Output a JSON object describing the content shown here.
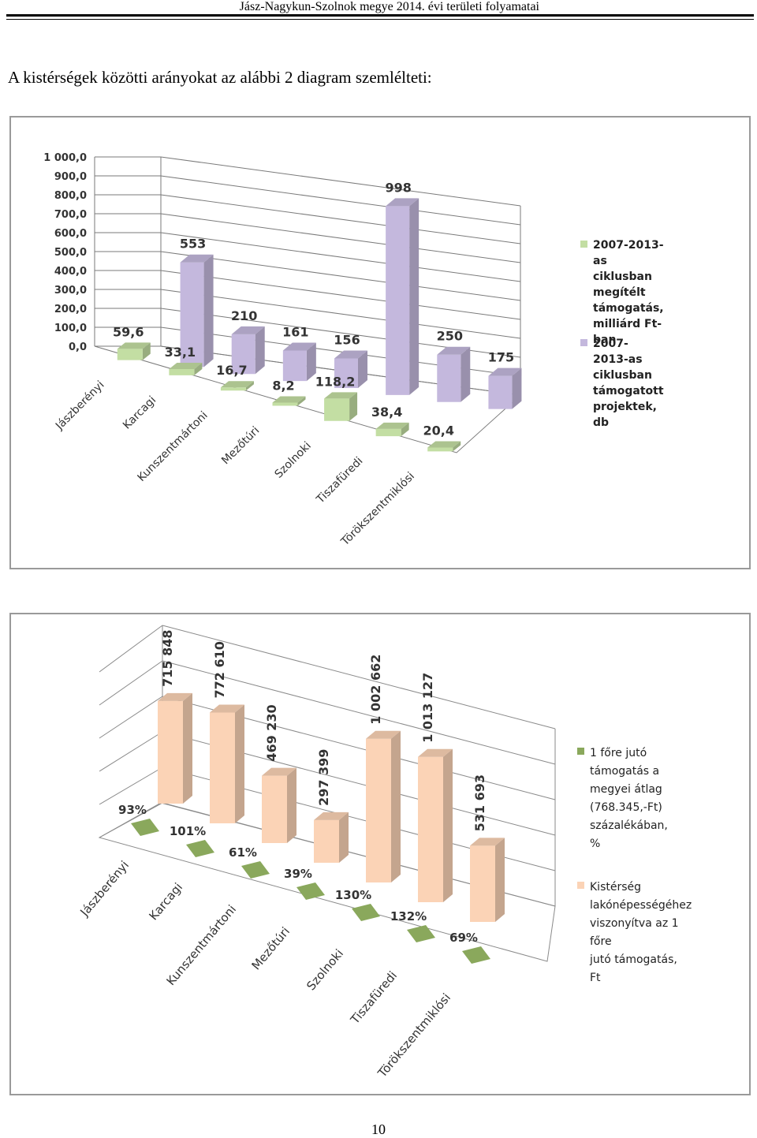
{
  "header": {
    "title": "Jász-Nagykun-Szolnok megye 2014. évi területi folyamatai"
  },
  "intro_text": "A kistérségek közötti arányokat az alábbi 2 diagram szemlélteti:",
  "page_number": "10",
  "chart_data": [
    {
      "type": "bar",
      "categories": [
        "Jászberényi",
        "Karcagi",
        "Kunszentmártoni",
        "Mezőtúri",
        "Szolnoki",
        "Tiszafüredi",
        "Törökszentmiklósi"
      ],
      "series": [
        {
          "name": "2007-2013-as ciklusban megítélt támogatás, milliárd Ft-ban",
          "values": [
            59.6,
            33.1,
            16.7,
            8.2,
            118.2,
            38.4,
            20.4
          ],
          "labels": [
            "59,6",
            "33,1",
            "16,7",
            "8,2",
            "118,2",
            "38,4",
            "20,4"
          ],
          "color": "#c3dea3"
        },
        {
          "name": "2007-2013-as ciklusban támogatott projektek, db",
          "values": [
            553,
            210,
            161,
            156,
            998,
            250,
            175
          ],
          "labels": [
            "553",
            "210",
            "161",
            "156",
            "998",
            "250",
            "175"
          ],
          "color": "#c4b8dd"
        }
      ],
      "yticks": [
        "1 000,0",
        "900,0",
        "800,0",
        "700,0",
        "600,0",
        "500,0",
        "400,0",
        "300,0",
        "200,0",
        "100,0",
        "0,0"
      ],
      "ylim": [
        0,
        1000
      ],
      "grid": true,
      "legend": "right"
    },
    {
      "type": "bar",
      "categories": [
        "Jászberényi",
        "Karcagi",
        "Kunszentmártoni",
        "Mezőtúri",
        "Szolnoki",
        "Tiszafüredi",
        "Törökszentmiklósi"
      ],
      "series": [
        {
          "name": "1 főre jutó támogatás a megyei átlag (768.345,-Ft) százalékában, %",
          "values": [
            93,
            101,
            61,
            39,
            130,
            132,
            69
          ],
          "labels": [
            "93%",
            "101%",
            "61%",
            "39%",
            "130%",
            "132%",
            "69%"
          ],
          "color": "#8aa85c"
        },
        {
          "name": "Kistérség lakónépességéhez viszonyítva az 1 főre jutó támogatás, Ft",
          "values": [
            715848,
            772610,
            469230,
            297399,
            1002662,
            1013127,
            531693
          ],
          "labels": [
            "715 848",
            "772 610",
            "469 230",
            "297 399",
            "1 002 662",
            "1 013 127",
            "531 693"
          ],
          "color": "#fbd3b6"
        }
      ],
      "grid": true,
      "legend": "right"
    }
  ],
  "legend1": [
    {
      "text": "2007-2013-as\nciklusban megítélt\ntámogatás,\nmilliárd Ft-ban",
      "color": "#c3dea3"
    },
    {
      "text": "2007-2013-as ciklusban\ntámogatott\nprojektek, db",
      "color": "#c4b8dd"
    }
  ],
  "legend2": [
    {
      "text": "1 főre jutó\ntámogatás a\nmegyei átlag\n(768.345,-Ft)\nszázalékában, %",
      "color": "#8aa85c"
    },
    {
      "text": "Kistérség lakónépességéhez\nviszonyítva az 1 főre\njutó támogatás,\nFt",
      "color": "#fbd3b6"
    }
  ]
}
